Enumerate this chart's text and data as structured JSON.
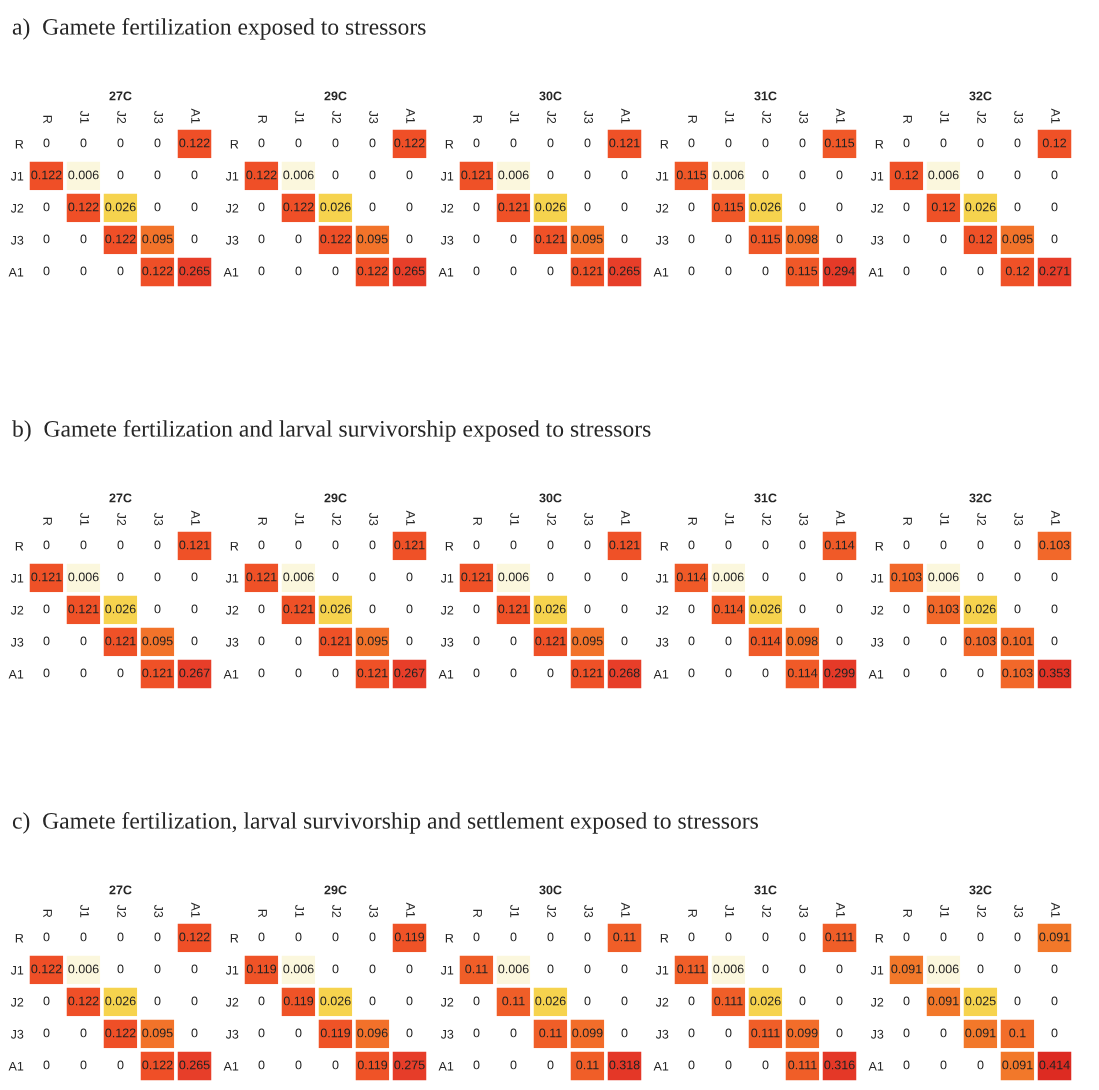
{
  "chart_data": [
    {
      "type": "heatmap",
      "data_labels": true,
      "title": "27C",
      "annotations": [
        "a)  Gamete fertilization exposed to stressors"
      ],
      "categories": [
        "R",
        "J1",
        "J2",
        "J3",
        "A1"
      ],
      "y_categories": [
        "R",
        "J1",
        "J2",
        "J3",
        "A1"
      ],
      "cells": [
        [
          0,
          0,
          0,
          0,
          0.122
        ],
        [
          0.122,
          0.006,
          0,
          0,
          0
        ],
        [
          0,
          0.122,
          0.026,
          0,
          0
        ],
        [
          0,
          0,
          0.122,
          0.095,
          0
        ],
        [
          0,
          0,
          0,
          0.122,
          0.265
        ]
      ]
    },
    {
      "type": "heatmap",
      "data_labels": true,
      "title": "29C",
      "categories": [
        "R",
        "J1",
        "J2",
        "J3",
        "A1"
      ],
      "y_categories": [
        "R",
        "J1",
        "J2",
        "J3",
        "A1"
      ],
      "cells": [
        [
          0,
          0,
          0,
          0,
          0.122
        ],
        [
          0.122,
          0.006,
          0,
          0,
          0
        ],
        [
          0,
          0.122,
          0.026,
          0,
          0
        ],
        [
          0,
          0,
          0.122,
          0.095,
          0
        ],
        [
          0,
          0,
          0,
          0.122,
          0.265
        ]
      ]
    },
    {
      "type": "heatmap",
      "data_labels": true,
      "title": "30C",
      "categories": [
        "R",
        "J1",
        "J2",
        "J3",
        "A1"
      ],
      "y_categories": [
        "R",
        "J1",
        "J2",
        "J3",
        "A1"
      ],
      "cells": [
        [
          0,
          0,
          0,
          0,
          0.121
        ],
        [
          0.121,
          0.006,
          0,
          0,
          0
        ],
        [
          0,
          0.121,
          0.026,
          0,
          0
        ],
        [
          0,
          0,
          0.121,
          0.095,
          0
        ],
        [
          0,
          0,
          0,
          0.121,
          0.265
        ]
      ]
    },
    {
      "type": "heatmap",
      "data_labels": true,
      "title": "31C",
      "categories": [
        "R",
        "J1",
        "J2",
        "J3",
        "A1"
      ],
      "y_categories": [
        "R",
        "J1",
        "J2",
        "J3",
        "A1"
      ],
      "cells": [
        [
          0,
          0,
          0,
          0,
          0.115
        ],
        [
          0.115,
          0.006,
          0,
          0,
          0
        ],
        [
          0,
          0.115,
          0.026,
          0,
          0
        ],
        [
          0,
          0,
          0.115,
          0.098,
          0
        ],
        [
          0,
          0,
          0,
          0.115,
          0.294
        ]
      ]
    },
    {
      "type": "heatmap",
      "data_labels": true,
      "title": "32C",
      "categories": [
        "R",
        "J1",
        "J2",
        "J3",
        "A1"
      ],
      "y_categories": [
        "R",
        "J1",
        "J2",
        "J3",
        "A1"
      ],
      "cells": [
        [
          0,
          0,
          0,
          0,
          0.12
        ],
        [
          0.12,
          0.006,
          0,
          0,
          0
        ],
        [
          0,
          0.12,
          0.026,
          0,
          0
        ],
        [
          0,
          0,
          0.12,
          0.095,
          0
        ],
        [
          0,
          0,
          0,
          0.12,
          0.271
        ]
      ]
    },
    {
      "type": "heatmap",
      "data_labels": true,
      "title": "27C",
      "annotations": [
        "b)  Gamete fertilization and larval survivorship exposed to stressors"
      ],
      "categories": [
        "R",
        "J1",
        "J2",
        "J3",
        "A1"
      ],
      "y_categories": [
        "R",
        "J1",
        "J2",
        "J3",
        "A1"
      ],
      "cells": [
        [
          0,
          0,
          0,
          0,
          0.121
        ],
        [
          0.121,
          0.006,
          0,
          0,
          0
        ],
        [
          0,
          0.121,
          0.026,
          0,
          0
        ],
        [
          0,
          0,
          0.121,
          0.095,
          0
        ],
        [
          0,
          0,
          0,
          0.121,
          0.267
        ]
      ]
    },
    {
      "type": "heatmap",
      "data_labels": true,
      "title": "29C",
      "categories": [
        "R",
        "J1",
        "J2",
        "J3",
        "A1"
      ],
      "y_categories": [
        "R",
        "J1",
        "J2",
        "J3",
        "A1"
      ],
      "cells": [
        [
          0,
          0,
          0,
          0,
          0.121
        ],
        [
          0.121,
          0.006,
          0,
          0,
          0
        ],
        [
          0,
          0.121,
          0.026,
          0,
          0
        ],
        [
          0,
          0,
          0.121,
          0.095,
          0
        ],
        [
          0,
          0,
          0,
          0.121,
          0.267
        ]
      ]
    },
    {
      "type": "heatmap",
      "data_labels": true,
      "title": "30C",
      "categories": [
        "R",
        "J1",
        "J2",
        "J3",
        "A1"
      ],
      "y_categories": [
        "R",
        "J1",
        "J2",
        "J3",
        "A1"
      ],
      "cells": [
        [
          0,
          0,
          0,
          0,
          0.121
        ],
        [
          0.121,
          0.006,
          0,
          0,
          0
        ],
        [
          0,
          0.121,
          0.026,
          0,
          0
        ],
        [
          0,
          0,
          0.121,
          0.095,
          0
        ],
        [
          0,
          0,
          0,
          0.121,
          0.268
        ]
      ]
    },
    {
      "type": "heatmap",
      "data_labels": true,
      "title": "31C",
      "categories": [
        "R",
        "J1",
        "J2",
        "J3",
        "A1"
      ],
      "y_categories": [
        "R",
        "J1",
        "J2",
        "J3",
        "A1"
      ],
      "cells": [
        [
          0,
          0,
          0,
          0,
          0.114
        ],
        [
          0.114,
          0.006,
          0,
          0,
          0
        ],
        [
          0,
          0.114,
          0.026,
          0,
          0
        ],
        [
          0,
          0,
          0.114,
          0.098,
          0
        ],
        [
          0,
          0,
          0,
          0.114,
          0.299
        ]
      ]
    },
    {
      "type": "heatmap",
      "data_labels": true,
      "title": "32C",
      "categories": [
        "R",
        "J1",
        "J2",
        "J3",
        "A1"
      ],
      "y_categories": [
        "R",
        "J1",
        "J2",
        "J3",
        "A1"
      ],
      "cells": [
        [
          0,
          0,
          0,
          0,
          0.103
        ],
        [
          0.103,
          0.006,
          0,
          0,
          0
        ],
        [
          0,
          0.103,
          0.026,
          0,
          0
        ],
        [
          0,
          0,
          0.103,
          0.101,
          0
        ],
        [
          0,
          0,
          0,
          0.103,
          0.353
        ]
      ]
    },
    {
      "type": "heatmap",
      "data_labels": true,
      "title": "27C",
      "annotations": [
        "c)  Gamete fertilization, larval survivorship and settlement exposed to stressors"
      ],
      "categories": [
        "R",
        "J1",
        "J2",
        "J3",
        "A1"
      ],
      "y_categories": [
        "R",
        "J1",
        "J2",
        "J3",
        "A1"
      ],
      "cells": [
        [
          0,
          0,
          0,
          0,
          0.122
        ],
        [
          0.122,
          0.006,
          0,
          0,
          0
        ],
        [
          0,
          0.122,
          0.026,
          0,
          0
        ],
        [
          0,
          0,
          0.122,
          0.095,
          0
        ],
        [
          0,
          0,
          0,
          0.122,
          0.265
        ]
      ]
    },
    {
      "type": "heatmap",
      "data_labels": true,
      "title": "29C",
      "categories": [
        "R",
        "J1",
        "J2",
        "J3",
        "A1"
      ],
      "y_categories": [
        "R",
        "J1",
        "J2",
        "J3",
        "A1"
      ],
      "cells": [
        [
          0,
          0,
          0,
          0,
          0.119
        ],
        [
          0.119,
          0.006,
          0,
          0,
          0
        ],
        [
          0,
          0.119,
          0.026,
          0,
          0
        ],
        [
          0,
          0,
          0.119,
          0.096,
          0
        ],
        [
          0,
          0,
          0,
          0.119,
          0.275
        ]
      ]
    },
    {
      "type": "heatmap",
      "data_labels": true,
      "title": "30C",
      "categories": [
        "R",
        "J1",
        "J2",
        "J3",
        "A1"
      ],
      "y_categories": [
        "R",
        "J1",
        "J2",
        "J3",
        "A1"
      ],
      "cells": [
        [
          0,
          0,
          0,
          0,
          0.11
        ],
        [
          0.11,
          0.006,
          0,
          0,
          0
        ],
        [
          0,
          0.11,
          0.026,
          0,
          0
        ],
        [
          0,
          0,
          0.11,
          0.099,
          0
        ],
        [
          0,
          0,
          0,
          0.11,
          0.318
        ]
      ]
    },
    {
      "type": "heatmap",
      "data_labels": true,
      "title": "31C",
      "categories": [
        "R",
        "J1",
        "J2",
        "J3",
        "A1"
      ],
      "y_categories": [
        "R",
        "J1",
        "J2",
        "J3",
        "A1"
      ],
      "cells": [
        [
          0,
          0,
          0,
          0,
          0.111
        ],
        [
          0.111,
          0.006,
          0,
          0,
          0
        ],
        [
          0,
          0.111,
          0.026,
          0,
          0
        ],
        [
          0,
          0,
          0.111,
          0.099,
          0
        ],
        [
          0,
          0,
          0,
          0.111,
          0.316
        ]
      ]
    },
    {
      "type": "heatmap",
      "data_labels": true,
      "title": "32C",
      "categories": [
        "R",
        "J1",
        "J2",
        "J3",
        "A1"
      ],
      "y_categories": [
        "R",
        "J1",
        "J2",
        "J3",
        "A1"
      ],
      "cells": [
        [
          0,
          0,
          0,
          0,
          0.091
        ],
        [
          0.091,
          0.006,
          0,
          0,
          0
        ],
        [
          0,
          0.091,
          0.025,
          0,
          0
        ],
        [
          0,
          0,
          0.091,
          0.1,
          0
        ],
        [
          0,
          0,
          0,
          0.091,
          0.414
        ]
      ]
    }
  ]
}
